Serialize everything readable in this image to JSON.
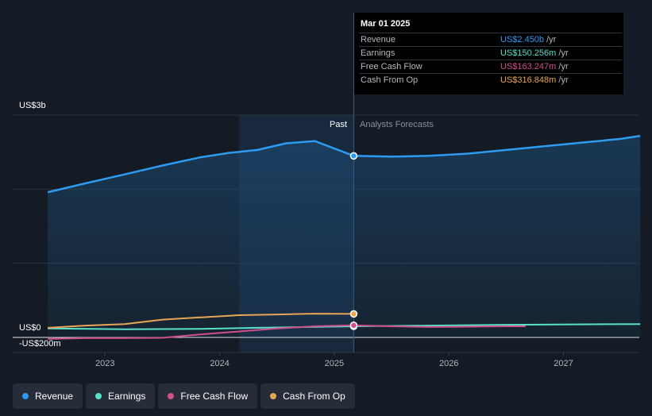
{
  "chart_data": {
    "type": "line",
    "x_ticks": [
      "2023",
      "2024",
      "2025",
      "2026",
      "2027"
    ],
    "y_labels": {
      "top": "US$3b",
      "zero": "US$0",
      "bottom": "-US$200m"
    },
    "ylim": [
      -200,
      3000
    ],
    "divider_labels": {
      "past": "Past",
      "forecast": "Analysts Forecasts"
    },
    "divider_x": 2025.17,
    "highlight_start": 2024.17,
    "series": [
      {
        "name": "Revenue",
        "color": "#2d9bf0",
        "area": true,
        "x": [
          2022.5,
          2022.83,
          2023.17,
          2023.5,
          2023.83,
          2024.08,
          2024.33,
          2024.58,
          2024.83,
          2025.17,
          2025.5,
          2025.83,
          2026.17,
          2026.5,
          2026.83,
          2027.17,
          2027.5,
          2027.67
        ],
        "y": [
          1960,
          2080,
          2200,
          2320,
          2430,
          2490,
          2530,
          2620,
          2650,
          2450,
          2440,
          2450,
          2480,
          2530,
          2580,
          2630,
          2680,
          2720
        ]
      },
      {
        "name": "Earnings",
        "color": "#58e1c9",
        "area": false,
        "x": [
          2022.5,
          2023.17,
          2023.83,
          2024.33,
          2025.17,
          2025.83,
          2026.5,
          2027.67
        ],
        "y": [
          120,
          110,
          115,
          130,
          150,
          160,
          170,
          180
        ]
      },
      {
        "name": "Free Cash Flow",
        "color": "#d1508c",
        "area": false,
        "x": [
          2022.5,
          2022.83,
          2023.17,
          2023.5,
          2023.83,
          2024.17,
          2024.5,
          2024.83,
          2025.17,
          2025.5,
          2025.83,
          2026.17,
          2026.5,
          2026.67
        ],
        "y": [
          -20,
          -10,
          -10,
          -5,
          40,
          80,
          120,
          150,
          163,
          150,
          140,
          145,
          150,
          150
        ]
      },
      {
        "name": "Cash From Op",
        "color": "#e9a556",
        "area": false,
        "x": [
          2022.5,
          2022.83,
          2023.17,
          2023.5,
          2023.83,
          2024.17,
          2024.5,
          2024.83,
          2025.17
        ],
        "y": [
          130,
          160,
          180,
          240,
          270,
          300,
          310,
          320,
          317
        ]
      }
    ]
  },
  "tooltip": {
    "date": "Mar 01 2025",
    "rows": [
      {
        "label": "Revenue",
        "value": "US$2.450b",
        "unit": "/yr",
        "color": "#2d9bf0"
      },
      {
        "label": "Earnings",
        "value": "US$150.256m",
        "unit": "/yr",
        "color": "#58e1c9"
      },
      {
        "label": "Free Cash Flow",
        "value": "US$163.247m",
        "unit": "/yr",
        "color": "#d1508c"
      },
      {
        "label": "Cash From Op",
        "value": "US$316.848m",
        "unit": "/yr",
        "color": "#e9a556"
      }
    ]
  },
  "legend": [
    {
      "label": "Revenue",
      "color": "#2d9bf0"
    },
    {
      "label": "Earnings",
      "color": "#58e1c9"
    },
    {
      "label": "Free Cash Flow",
      "color": "#d1508c"
    },
    {
      "label": "Cash From Op",
      "color": "#e9a556"
    }
  ]
}
